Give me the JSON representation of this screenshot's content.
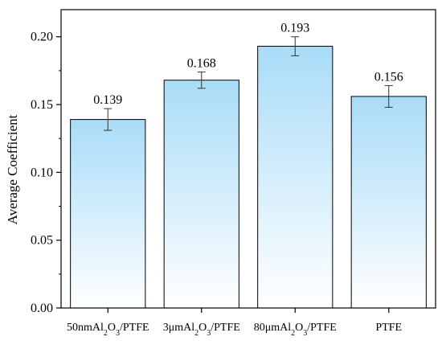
{
  "chart_data": {
    "type": "bar",
    "title": "",
    "xlabel": "",
    "ylabel": "Average Coefficient",
    "ylim": [
      0.0,
      0.22
    ],
    "yticks": [
      "0.00",
      "0.05",
      "0.10",
      "0.15",
      "0.20"
    ],
    "grid": false,
    "categories": [
      {
        "main": "50nmAl",
        "sub1": "2",
        "mid": "O",
        "sub2": "3",
        "tail": "/PTFE"
      },
      {
        "main": "3μmAl",
        "sub1": "2",
        "mid": "O",
        "sub2": "3",
        "tail": "/PTFE"
      },
      {
        "main": "80μmAl",
        "sub1": "2",
        "mid": "O",
        "sub2": "3",
        "tail": "/PTFE"
      },
      {
        "main": "PTFE",
        "sub1": "",
        "mid": "",
        "sub2": "",
        "tail": ""
      }
    ],
    "values": [
      0.139,
      0.168,
      0.193,
      0.156
    ],
    "value_labels": [
      "0.139",
      "0.168",
      "0.193",
      "0.156"
    ],
    "errors": [
      0.008,
      0.006,
      0.007,
      0.008
    ],
    "colors": {
      "bar_top": "#a9dcf8",
      "bar_bottom": "#ffffff",
      "bar_stroke": "#000000",
      "axis": "#000000"
    }
  }
}
